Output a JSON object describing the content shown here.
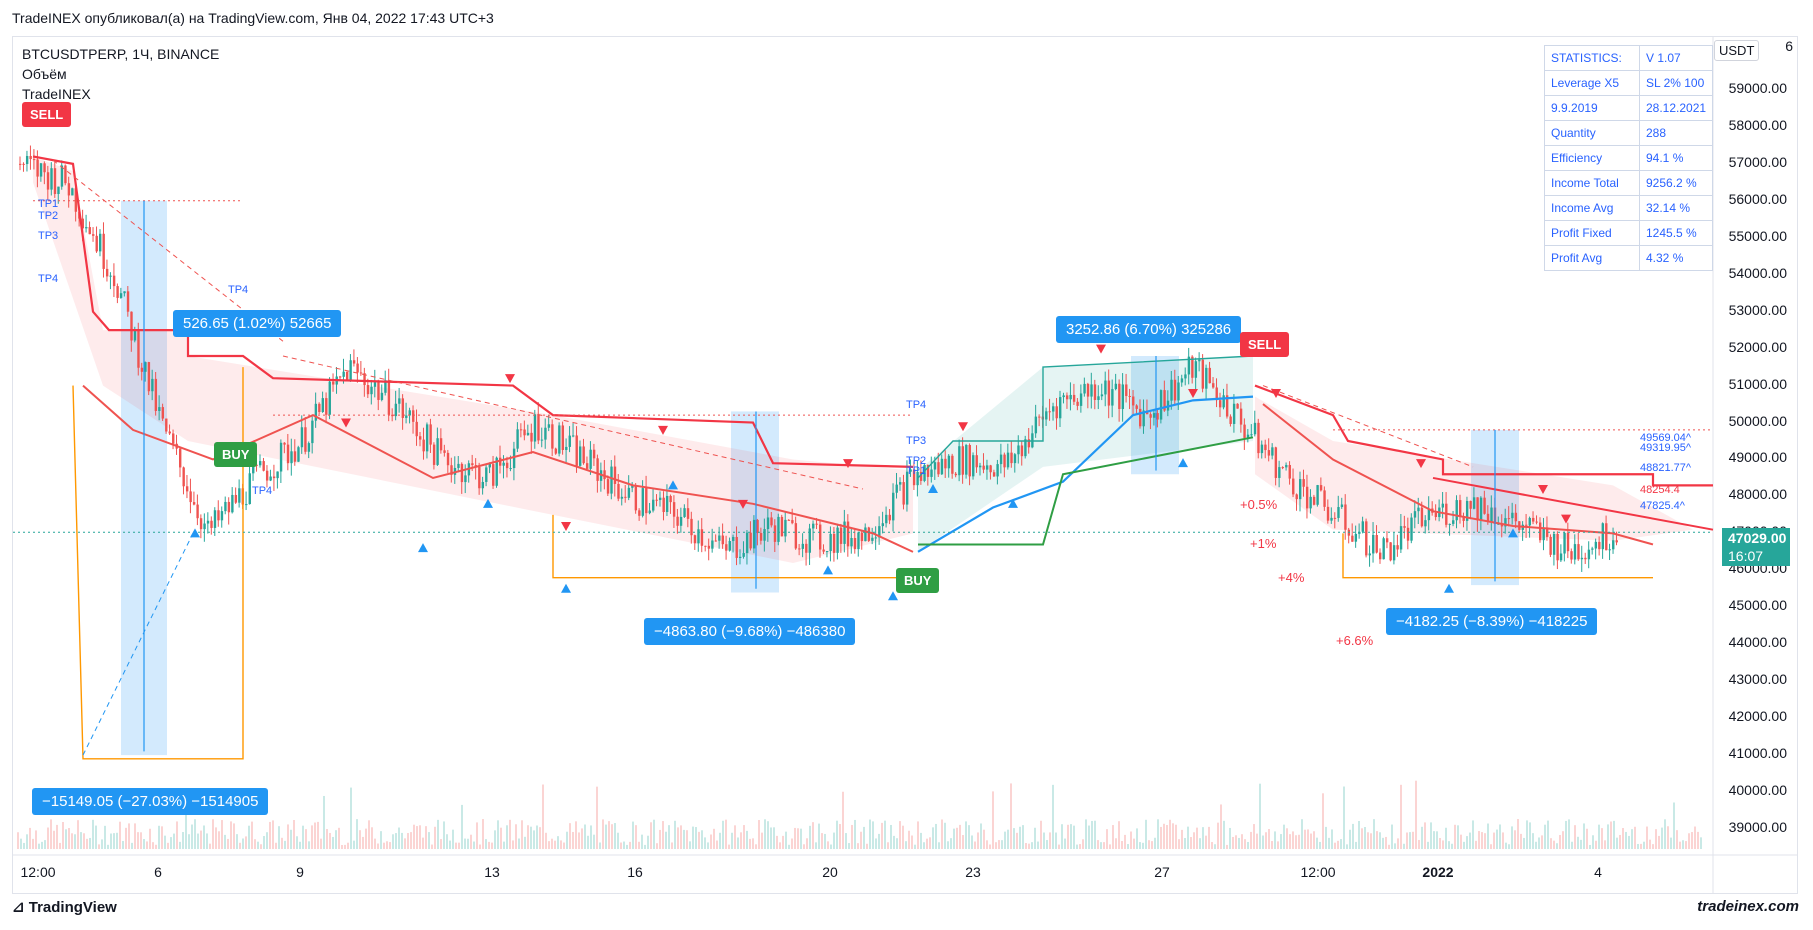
{
  "header": {
    "publish_line": "TradeINEX опубликовал(а) на TradingView.com, Янв 04, 2022 17:43 UTC+3"
  },
  "legend": {
    "symbol_line": "BTCUSDTPERP, 1Ч, BINANCE",
    "volume_label": "Объём",
    "indicator_label": "TradeINEX"
  },
  "currency_button": "USDT",
  "stats": [
    {
      "k": "STATISTICS:",
      "v": "V 1.07"
    },
    {
      "k": "Leverage X5",
      "v": "SL 2% 100"
    },
    {
      "k": "9.9.2019",
      "v": "28.12.2021"
    },
    {
      "k": "Quantity",
      "v": "288"
    },
    {
      "k": "Efficiency",
      "v": "94.1 %"
    },
    {
      "k": "Income Total",
      "v": "9256.2 %"
    },
    {
      "k": "Income Avg",
      "v": "32.14 %"
    },
    {
      "k": "Profit Fixed",
      "v": "1245.5 %"
    },
    {
      "k": "Profit Avg",
      "v": "4.32 %"
    }
  ],
  "y_axis": {
    "top_label": "6",
    "labels": [
      "59000.00",
      "58000.00",
      "57000.00",
      "56000.00",
      "55000.00",
      "54000.00",
      "53000.00",
      "52000.00",
      "51000.00",
      "50000.00",
      "49000.00",
      "48000.00",
      "47000.00",
      "46000.00",
      "45000.00",
      "44000.00",
      "43000.00",
      "42000.00",
      "41000.00",
      "40000.00",
      "39000.00"
    ]
  },
  "x_axis": {
    "labels": [
      {
        "text": "12:00",
        "bold": false
      },
      {
        "text": "6",
        "bold": false
      },
      {
        "text": "9",
        "bold": false
      },
      {
        "text": "13",
        "bold": false
      },
      {
        "text": "16",
        "bold": false
      },
      {
        "text": "20",
        "bold": false
      },
      {
        "text": "23",
        "bold": false
      },
      {
        "text": "27",
        "bold": false
      },
      {
        "text": "12:00",
        "bold": false
      },
      {
        "text": "2022",
        "bold": true
      },
      {
        "text": "4",
        "bold": false
      }
    ]
  },
  "last_price": {
    "price": "47029.00",
    "countdown": "16:07"
  },
  "callouts": [
    "526.65 (1.02%) 52665",
    "3252.86 (6.70%) 325286",
    "−4863.80 (−9.68%) −486380",
    "−4182.25 (−8.39%) −418225",
    "−15149.05 (−27.03%) −1514905"
  ],
  "tags": {
    "sell": "SELL",
    "buy": "BUY"
  },
  "pct_labels": [
    "+0.5%",
    "+1%",
    "+4%",
    "+6.6%"
  ],
  "tp_labels": [
    "TP1",
    "TP2",
    "TP3",
    "TP4",
    "TP4",
    "TP4",
    "TP3",
    "TP2",
    "TP1",
    "TP4"
  ],
  "side_levels": [
    "49569.04^",
    "49319.95^",
    "48821.77^",
    "48254.4",
    "47825.4^"
  ],
  "footer": {
    "logo": "TradingView",
    "site": "tradeinex.com"
  },
  "colors": {
    "up": "#26a69a",
    "down": "#ef5350",
    "sell": "#f23645",
    "buy": "#2f9e44",
    "accent": "#2196f3"
  },
  "chart_data": {
    "type": "candlestick",
    "symbol": "BTCUSDTPERP",
    "interval": "1Ч",
    "ylim": [
      39000,
      60000
    ],
    "x": [
      "12:00",
      "6",
      "9",
      "13",
      "16",
      "20",
      "23",
      "27",
      "12:00",
      "2022",
      "4"
    ],
    "close_path": [
      57000,
      56500,
      54000,
      50000,
      47000,
      48500,
      49500,
      51500,
      50500,
      49000,
      48500,
      50000,
      49000,
      48000,
      47500,
      46500,
      47200,
      46800,
      47000,
      48500,
      49000,
      48800,
      50500,
      51000,
      50200,
      51500,
      50000,
      48500,
      47500,
      46500,
      47500,
      47800,
      47200,
      46500,
      47029
    ],
    "last": 47029.0
  }
}
